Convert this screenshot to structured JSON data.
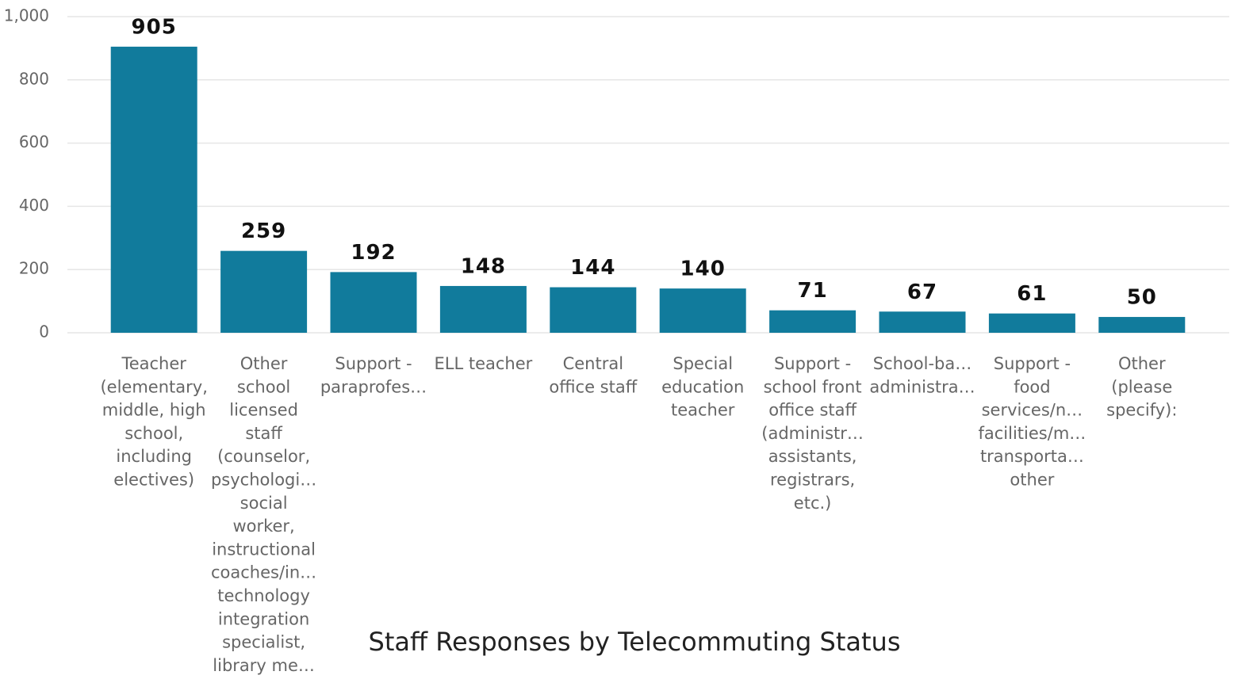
{
  "chart_data": {
    "type": "bar",
    "title": "Staff Responses by Telecommuting Status",
    "categories": [
      [
        "Teacher",
        "(elementary,",
        "middle, high",
        "school,",
        "including",
        "electives)"
      ],
      [
        "Other",
        "school",
        "licensed",
        "staff",
        "(counselor,",
        "psychologi…",
        "social",
        "worker,",
        "instructional",
        "coaches/in…",
        "technology",
        "integration",
        "specialist,",
        "library me…"
      ],
      [
        "Support -",
        "paraprofes…"
      ],
      [
        "ELL teacher"
      ],
      [
        "Central",
        "office staff"
      ],
      [
        "Special",
        "education",
        "teacher"
      ],
      [
        "Support -",
        "school front",
        "office staff",
        "(administr…",
        "assistants,",
        "registrars,",
        "etc.)"
      ],
      [
        "School-ba…",
        "administra…"
      ],
      [
        "Support -",
        "food",
        "services/n…",
        "facilities/m…",
        "transporta…",
        "other"
      ],
      [
        "Other",
        "(please",
        "specify):"
      ]
    ],
    "values": [
      905,
      259,
      192,
      148,
      144,
      140,
      71,
      67,
      61,
      50
    ],
    "color": "#117b9c",
    "ylim": [
      0,
      1000
    ],
    "yticks": [
      0,
      200,
      400,
      600,
      800,
      {
        "value": 1000,
        "label": "1,000"
      }
    ],
    "grid": true
  }
}
